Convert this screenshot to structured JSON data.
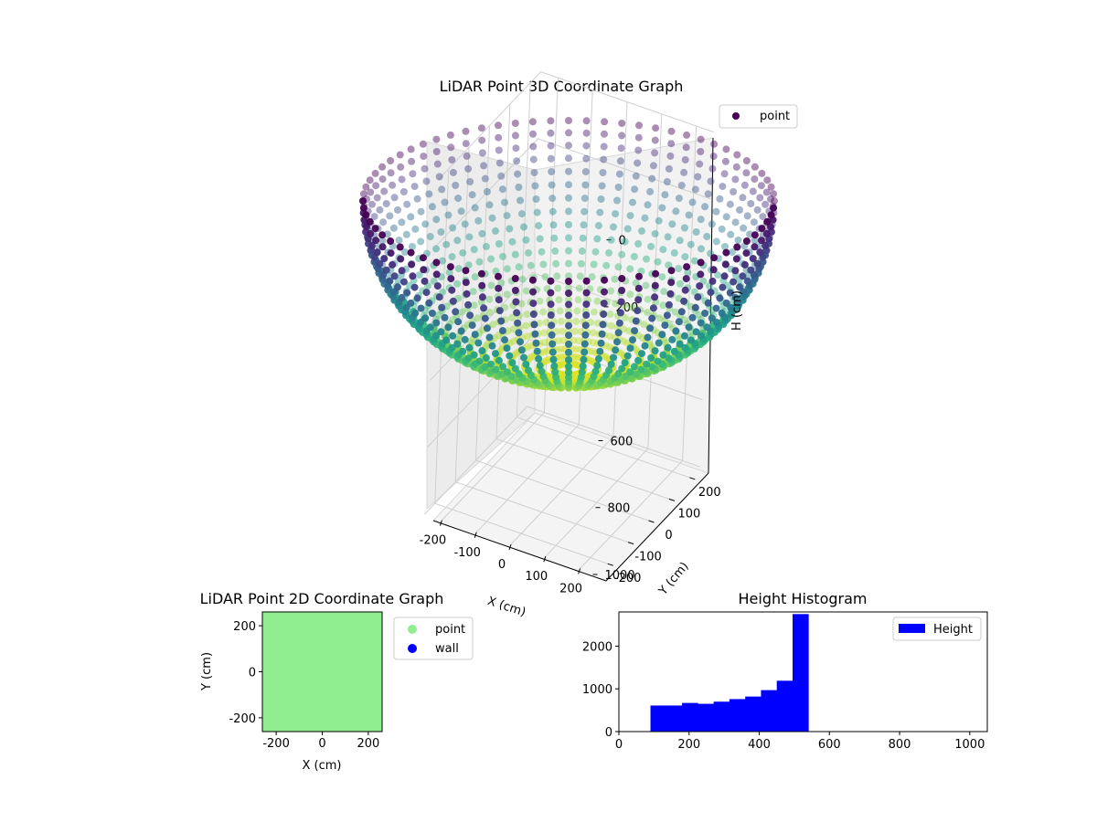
{
  "chart_data": [
    {
      "type": "scatter",
      "projection": "3d",
      "title": "LiDAR Point 3D Coordinate Graph",
      "xlabel": "X (cm)",
      "ylabel": "Y (cm)",
      "zlabel": "H (cm)",
      "xlim": [
        -250,
        250
      ],
      "ylim": [
        -250,
        250
      ],
      "zlim": [
        1000,
        0
      ],
      "z_inverted": true,
      "x_ticks": [
        "-200",
        "-100",
        "0",
        "100",
        "200"
      ],
      "y_ticks": [
        "200",
        "100",
        "0",
        "-100",
        "-200"
      ],
      "z_ticks": [
        "0",
        "200",
        "600",
        "800",
        "1000"
      ],
      "colormap": "viridis",
      "grid": true,
      "legend": {
        "placement": "top-right",
        "entries": [
          {
            "label": "point",
            "color": "#440154"
          }
        ]
      },
      "shape": {
        "description_values": "hemispherical bowl of points",
        "radius_cm": 250,
        "depth_cm": 500,
        "rim_height_cm": 0,
        "bottom_height_cm": 500,
        "azimuth_lines": 72,
        "rings": 22
      }
    },
    {
      "type": "scatter",
      "title": "LiDAR Point 2D Coordinate Graph",
      "xlabel": "X (cm)",
      "ylabel": "Y (cm)",
      "xlim": [
        -260,
        260
      ],
      "ylim": [
        -260,
        260
      ],
      "x_ticks": [
        -200,
        0,
        200
      ],
      "y_ticks": [
        200,
        0,
        -200
      ],
      "fill_color": "#90ee90",
      "legend": {
        "placement": "outside-right",
        "entries": [
          {
            "label": "point",
            "color": "#90ee90"
          },
          {
            "label": "wall",
            "color": "#0000ff"
          }
        ]
      }
    },
    {
      "type": "bar",
      "subtype": "histogram",
      "title": "Height Histogram",
      "xlim": [
        0,
        1050
      ],
      "ylim": [
        0,
        2800
      ],
      "x_ticks": [
        0,
        200,
        400,
        600,
        800,
        1000
      ],
      "y_ticks": [
        0,
        1000,
        2000
      ],
      "bar_color": "#0000ff",
      "legend": {
        "placement": "top-right",
        "entries": [
          {
            "label": "Height",
            "color": "#0000ff"
          }
        ]
      },
      "bin_edges": [
        90,
        135,
        180,
        225,
        270,
        315,
        360,
        405,
        450,
        495,
        540
      ],
      "values": [
        610,
        610,
        670,
        650,
        700,
        760,
        820,
        970,
        1190,
        2750
      ]
    }
  ]
}
